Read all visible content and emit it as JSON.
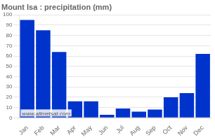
{
  "chart_data": {
    "type": "bar",
    "title": "Mount Isa : precipitation (mm)",
    "categories": [
      "Jan",
      "Feb",
      "Mar",
      "Apr",
      "May",
      "Jun",
      "Jul",
      "Aug",
      "Sep",
      "Oct",
      "Nov",
      "Dec"
    ],
    "values": [
      95,
      85,
      64,
      16,
      16,
      3,
      9,
      6,
      8,
      20,
      24,
      62
    ],
    "color": "#0033cc",
    "ylim": [
      0,
      100
    ],
    "yticks": [
      0,
      10,
      20,
      30,
      40,
      50,
      60,
      70,
      80,
      90,
      100
    ],
    "grid": "y",
    "annotations": [
      "www.allmetsat.com"
    ]
  }
}
